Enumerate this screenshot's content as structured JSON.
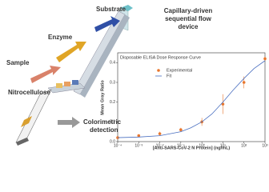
{
  "diagram": {
    "substrate": "Substrate",
    "enzyme": "Enzyme",
    "sample": "Sample",
    "nitrocellulose": "Nitrocellulose",
    "device_line1": "Capillary-driven",
    "device_line2": "sequential flow",
    "device_line3": "device",
    "detection_line1": "Colorimetric",
    "detection_line2": "detection"
  },
  "chart_data": {
    "type": "scatter",
    "title": "Disposable ELISA Dose Response Curve",
    "x_label": "[Anti-SARS-CoV-2 N Protein] (ng/mL)",
    "y_label": "Mean Gray Ratio",
    "log_x": true,
    "legend": "upper-left",
    "series": [
      {
        "name": "Experimental",
        "kind": "points",
        "color": "#e8772e",
        "x": [
          0.0001,
          0.001,
          0.01,
          0.1,
          1,
          10,
          100,
          1000
        ],
        "values": [
          0.02,
          0.03,
          0.04,
          0.06,
          0.1,
          0.19,
          0.3,
          0.42
        ],
        "errors": [
          0.005,
          0.005,
          0.01,
          0.01,
          0.02,
          0.05,
          0.03,
          0.01
        ]
      },
      {
        "name": "Fit",
        "kind": "line",
        "color": "#4a6fc0",
        "x": [
          0.0001,
          0.001,
          0.01,
          0.1,
          0.3,
          1,
          3,
          10,
          30,
          100,
          300,
          1000
        ],
        "values": [
          0.02,
          0.023,
          0.03,
          0.05,
          0.07,
          0.1,
          0.14,
          0.2,
          0.26,
          0.32,
          0.37,
          0.41
        ]
      }
    ],
    "xlim": [
      0.0001,
      1000
    ],
    "xticks": [
      {
        "value": 0.0001,
        "label": "10⁻⁴"
      },
      {
        "value": 0.001,
        "label": "10⁻³"
      },
      {
        "value": 0.01,
        "label": "10⁻²"
      },
      {
        "value": 0.1,
        "label": "10⁻¹"
      },
      {
        "value": 1,
        "label": "10⁰"
      },
      {
        "value": 10,
        "label": "10¹"
      },
      {
        "value": 100,
        "label": "10²"
      },
      {
        "value": 1000,
        "label": "10³"
      }
    ],
    "ylim": [
      0,
      0.45
    ],
    "yticks": [
      {
        "value": 0,
        "label": "0.0"
      },
      0.1,
      0.2,
      0.3,
      0.4
    ]
  }
}
